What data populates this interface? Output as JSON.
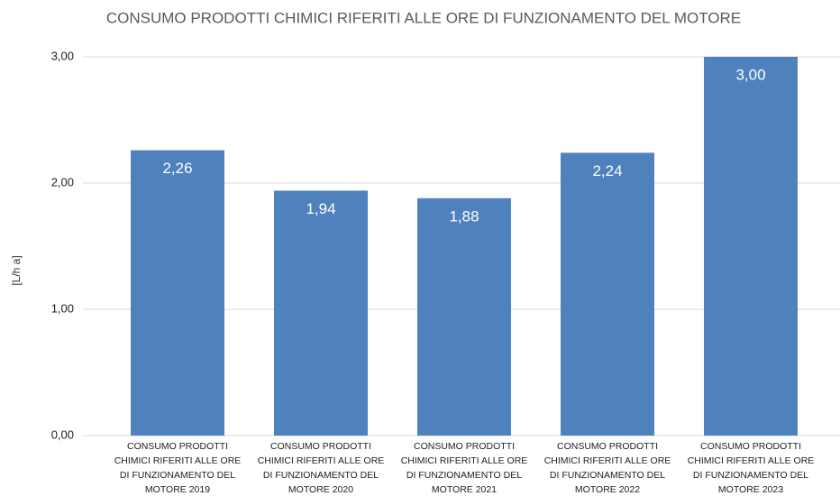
{
  "chart_data": {
    "type": "bar",
    "title": "CONSUMO PRODOTTI CHIMICI RIFERITI ALLE ORE DI FUNZIONAMENTO DEL MOTORE",
    "y_label": "[L/h a]",
    "categories": [
      "CONSUMO PRODOTTI CHIMICI RIFERITI ALLE ORE DI FUNZIONAMENTO DEL MOTORE 2019",
      "CONSUMO PRODOTTI CHIMICI RIFERITI ALLE ORE DI FUNZIONAMENTO DEL MOTORE 2020",
      "CONSUMO PRODOTTI CHIMICI RIFERITI ALLE ORE DI FUNZIONAMENTO DEL MOTORE 2021",
      "CONSUMO PRODOTTI CHIMICI RIFERITI ALLE ORE DI FUNZIONAMENTO DEL MOTORE 2022",
      "CONSUMO PRODOTTI CHIMICI RIFERITI ALLE ORE DI FUNZIONAMENTO DEL MOTORE 2023"
    ],
    "values": [
      2.26,
      1.94,
      1.88,
      2.24,
      3.0
    ],
    "value_labels": [
      "2,26",
      "1,94",
      "1,88",
      "2,24",
      "3,00"
    ],
    "color": "#4f81bd",
    "ylim": [
      0,
      3
    ],
    "yticks": [
      {
        "value": 0,
        "label": "0,00"
      },
      {
        "value": 1,
        "label": "1,00"
      },
      {
        "value": 2,
        "label": "2,00"
      },
      {
        "value": 3,
        "label": "3,00"
      }
    ],
    "grid": true
  }
}
